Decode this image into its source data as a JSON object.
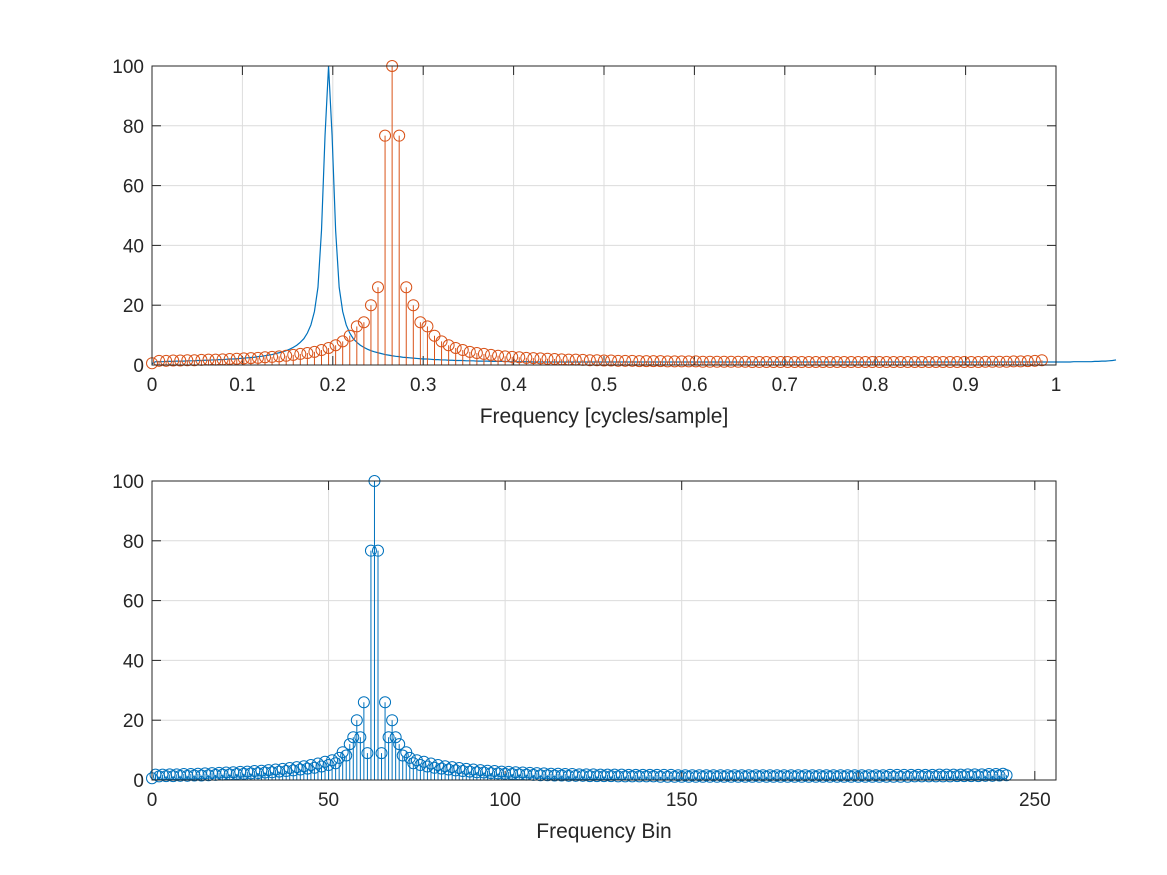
{
  "chart_data": [
    {
      "type": "stem",
      "xlabel": "Frequency [cycles/sample]",
      "ylabel": "",
      "xlim": [
        0,
        1
      ],
      "ylim": [
        0,
        100
      ],
      "xticks": [
        "0",
        "0.1",
        "0.2",
        "0.3",
        "0.4",
        "0.5",
        "0.6",
        "0.7",
        "0.8",
        "0.9",
        "1"
      ],
      "yticks": [
        "0",
        "20",
        "40",
        "60",
        "80",
        "100"
      ],
      "grid": true,
      "series": [
        {
          "style": "line",
          "color": "#0072BD",
          "x_spacing": 0.00390625,
          "values": [
            0.4,
            1.1,
            1.1,
            1.1,
            1.2,
            1.2,
            1.2,
            1.3,
            1.3,
            1.3,
            1.4,
            1.4,
            1.4,
            1.5,
            1.5,
            1.6,
            1.6,
            1.7,
            1.7,
            1.8,
            1.8,
            1.9,
            2.0,
            2.0,
            2.1,
            2.2,
            2.3,
            2.4,
            2.5,
            2.6,
            2.8,
            2.9,
            3.1,
            3.3,
            3.5,
            3.8,
            4.1,
            4.4,
            4.8,
            5.3,
            5.9,
            6.6,
            7.6,
            8.8,
            10.7,
            13.4,
            17.9,
            26.0,
            45.0,
            76.7,
            100,
            76.7,
            45.0,
            26.0,
            17.9,
            13.4,
            10.7,
            8.8,
            7.6,
            6.6,
            5.9,
            5.3,
            4.8,
            4.4,
            4.1,
            3.8,
            3.5,
            3.3,
            3.1,
            2.9,
            2.8,
            2.6,
            2.5,
            2.4,
            2.3,
            2.2,
            2.1,
            2.0,
            2.0,
            1.9,
            1.8,
            1.8,
            1.7,
            1.7,
            1.6,
            1.6,
            1.5,
            1.5,
            1.5,
            1.4,
            1.4,
            1.4,
            1.3,
            1.3,
            1.3,
            1.3,
            1.2,
            1.2,
            1.2,
            1.2,
            1.2,
            1.1,
            1.1,
            1.1,
            1.1,
            1.1,
            1.1,
            1.1,
            1.0,
            1.0,
            1.0,
            1.0,
            1.0,
            1.0,
            1.0,
            1.0,
            1.0,
            1.0,
            1.0,
            1.0,
            1.0,
            1.0,
            1.0,
            1.0,
            1.0,
            1.0,
            1.0,
            1.0,
            1.0,
            1.0,
            1.0,
            1.0,
            1.0,
            1.0,
            1.0,
            1.0,
            1.0,
            1.0,
            1.0,
            1.0,
            1.0,
            1.0,
            1.0,
            1.0,
            1.0,
            1.0,
            1.0,
            1.0,
            1.0,
            1.0,
            1.0,
            1.0,
            1.0,
            1.0,
            1.0,
            1.0,
            1.0,
            1.0,
            1.0,
            1.0,
            1.0,
            1.0,
            1.0,
            1.0,
            1.0,
            1.0,
            1.0,
            1.0,
            1.0,
            1.0,
            1.0,
            1.0,
            1.0,
            1.0,
            1.0,
            1.0,
            1.0,
            1.0,
            1.0,
            1.0,
            1.0,
            1.0,
            1.0,
            1.0,
            1.0,
            1.0,
            1.0,
            1.0,
            1.0,
            1.0,
            1.0,
            1.0,
            1.0,
            1.0,
            1.0,
            1.0,
            1.0,
            1.0,
            1.0,
            1.0,
            1.0,
            1.0,
            1.0,
            1.0,
            1.0,
            1.0,
            1.0,
            1.0,
            1.0,
            1.0,
            1.0,
            1.0,
            1.0,
            1.0,
            1.0,
            1.0,
            1.0,
            1.0,
            1.0,
            1.0,
            1.0,
            1.0,
            1.0,
            1.0,
            1.0,
            1.0,
            1.0,
            1.0,
            1.0,
            1.0,
            1.0,
            1.0,
            1.0,
            1.0,
            1.0,
            1.0,
            1.0,
            1.0,
            1.0,
            1.0,
            1.0,
            1.0,
            1.0,
            1.0,
            1.0,
            1.0,
            1.0,
            1.0,
            1.0,
            1.0,
            1.0,
            1.0,
            1.0,
            1.0,
            1.0,
            1.0,
            1.0,
            1.0,
            1.0,
            1.0,
            1.0,
            1.1,
            1.1,
            1.1,
            1.1,
            1.1,
            1.1,
            1.2,
            1.2,
            1.3,
            1.3,
            1.4,
            1.5,
            1.7
          ]
        },
        {
          "style": "stem",
          "color": "#D95319",
          "x_spacing": 0.0078125,
          "values": [
            0.6,
            1.4,
            1.4,
            1.5,
            1.5,
            1.6,
            1.6,
            1.7,
            1.8,
            1.8,
            1.9,
            2.0,
            2.1,
            2.2,
            2.3,
            2.4,
            2.6,
            2.7,
            2.9,
            3.1,
            3.4,
            3.7,
            4.0,
            4.4,
            5.0,
            5.7,
            6.6,
            7.9,
            9.8,
            12.9,
            14.3,
            20.0,
            26.0,
            76.7,
            100,
            76.7,
            26.0,
            20.0,
            14.3,
            12.9,
            9.8,
            7.9,
            6.6,
            5.7,
            5.0,
            4.4,
            4.0,
            3.7,
            3.4,
            3.1,
            2.9,
            2.7,
            2.6,
            2.4,
            2.3,
            2.2,
            2.1,
            2.0,
            1.9,
            1.8,
            1.8,
            1.7,
            1.6,
            1.6,
            1.5,
            1.5,
            1.4,
            1.4,
            1.4,
            1.3,
            1.3,
            1.3,
            1.3,
            1.2,
            1.2,
            1.2,
            1.2,
            1.2,
            1.1,
            1.1,
            1.1,
            1.1,
            1.1,
            1.1,
            1.1,
            1.0,
            1.0,
            1.0,
            1.0,
            1.0,
            1.0,
            1.0,
            1.0,
            1.0,
            1.0,
            1.0,
            1.0,
            1.0,
            1.0,
            1.0,
            1.0,
            1.0,
            1.0,
            1.0,
            1.0,
            1.0,
            1.0,
            1.0,
            1.0,
            1.0,
            1.0,
            1.0,
            1.0,
            1.0,
            1.0,
            1.0,
            1.0,
            1.0,
            1.1,
            1.1,
            1.1,
            1.1,
            1.2,
            1.2,
            1.3,
            1.4,
            1.6
          ]
        }
      ]
    },
    {
      "type": "stem",
      "xlabel": "Frequency Bin",
      "ylabel": "",
      "xlim": [
        0,
        256
      ],
      "ylim": [
        0,
        100
      ],
      "xticks": [
        "0",
        "50",
        "100",
        "150",
        "200",
        "250"
      ],
      "yticks": [
        "0",
        "20",
        "40",
        "60",
        "80",
        "100"
      ],
      "grid": true,
      "series": [
        {
          "style": "stem",
          "color": "#0072BD",
          "x_spacing": 1,
          "values": [
            0.6,
            1.8,
            1.2,
            1.8,
            1.3,
            1.9,
            1.3,
            1.9,
            1.4,
            2.0,
            1.4,
            2.0,
            1.5,
            2.1,
            1.5,
            2.2,
            1.6,
            2.3,
            1.7,
            2.4,
            1.8,
            2.5,
            1.9,
            2.6,
            2.0,
            2.7,
            2.1,
            2.8,
            2.2,
            3.0,
            2.3,
            3.1,
            2.5,
            3.3,
            2.6,
            3.5,
            2.8,
            3.7,
            3.0,
            4.0,
            3.2,
            4.3,
            3.5,
            4.6,
            3.8,
            5.0,
            4.1,
            5.5,
            4.5,
            6.1,
            5.0,
            6.6,
            5.6,
            7.4,
            9.3,
            8.2,
            12.0,
            14.3,
            20.0,
            14.3,
            26.0,
            9.0,
            76.7,
            100,
            76.7,
            9.0,
            26.0,
            14.3,
            20.0,
            14.3,
            12.0,
            8.2,
            9.3,
            7.4,
            5.6,
            6.6,
            5.0,
            6.1,
            4.5,
            5.5,
            4.1,
            5.0,
            3.8,
            4.6,
            3.5,
            4.3,
            3.2,
            4.0,
            3.0,
            3.7,
            2.8,
            3.5,
            2.6,
            3.3,
            2.5,
            3.1,
            2.3,
            3.0,
            2.2,
            2.8,
            2.1,
            2.7,
            2.0,
            2.6,
            1.9,
            2.5,
            1.8,
            2.4,
            1.7,
            2.3,
            1.6,
            2.2,
            1.6,
            2.1,
            1.5,
            2.1,
            1.5,
            2.0,
            1.4,
            2.0,
            1.4,
            1.9,
            1.4,
            1.9,
            1.3,
            1.9,
            1.3,
            1.8,
            1.3,
            1.8,
            1.3,
            1.8,
            1.2,
            1.8,
            1.2,
            1.7,
            1.2,
            1.7,
            1.2,
            1.7,
            1.2,
            1.7,
            1.2,
            1.7,
            1.1,
            1.7,
            1.1,
            1.7,
            1.1,
            1.6,
            1.1,
            1.6,
            1.1,
            1.6,
            1.1,
            1.6,
            1.1,
            1.6,
            1.1,
            1.6,
            1.1,
            1.6,
            1.1,
            1.6,
            1.1,
            1.6,
            1.1,
            1.6,
            1.1,
            1.6,
            1.1,
            1.6,
            1.1,
            1.6,
            1.1,
            1.6,
            1.1,
            1.6,
            1.1,
            1.6,
            1.1,
            1.6,
            1.1,
            1.6,
            1.1,
            1.6,
            1.1,
            1.6,
            1.1,
            1.6,
            1.1,
            1.6,
            1.1,
            1.6,
            1.1,
            1.6,
            1.1,
            1.6,
            1.1,
            1.6,
            1.1,
            1.6,
            1.1,
            1.6,
            1.1,
            1.6,
            1.1,
            1.6,
            1.1,
            1.7,
            1.1,
            1.7,
            1.1,
            1.7,
            1.1,
            1.7,
            1.2,
            1.7,
            1.2,
            1.7,
            1.2,
            1.7,
            1.2,
            1.8,
            1.2,
            1.8,
            1.2,
            1.8,
            1.3,
            1.8,
            1.3,
            1.9,
            1.3,
            1.9,
            1.3,
            1.9,
            1.4,
            2.0,
            1.4,
            2.0,
            1.5,
            2.1,
            1.6
          ]
        }
      ]
    }
  ]
}
